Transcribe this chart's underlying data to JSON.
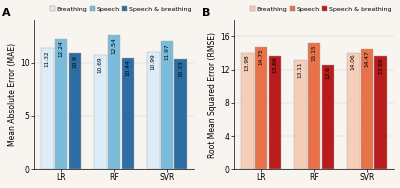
{
  "panel_A": {
    "title": "A",
    "ylabel": "Mean Absolute Error (MAE)",
    "categories": [
      "LR",
      "RF",
      "SVR"
    ],
    "series": {
      "Breathing": [
        11.32,
        10.69,
        10.99
      ],
      "Speech": [
        12.24,
        12.54,
        11.97
      ],
      "Speech & breathing": [
        10.9,
        10.44,
        10.33
      ]
    },
    "colors": [
      "#ddedf7",
      "#7bbcdc",
      "#2e6da4"
    ],
    "ylim": [
      0,
      14
    ],
    "yticks": [
      0,
      5,
      10
    ]
  },
  "panel_B": {
    "title": "B",
    "ylabel": "Root Mean Squared Error (RMSE)",
    "categories": [
      "LR",
      "RF",
      "SVR"
    ],
    "series": {
      "Breathing": [
        13.98,
        13.11,
        14.06
      ],
      "Speech": [
        14.75,
        15.15,
        14.47
      ],
      "Speech & breathing": [
        13.69,
        12.6,
        13.68
      ]
    },
    "colors": [
      "#f5cdb8",
      "#e8724a",
      "#b81c1c"
    ],
    "ylim": [
      0,
      18
    ],
    "yticks": [
      0,
      4,
      8,
      12,
      16
    ]
  },
  "bar_width": 0.26,
  "legend_labels": [
    "Breathing",
    "Speech",
    "Speech & breathing"
  ],
  "background_color": "#f8f4ef",
  "label_fontsize": 5.5,
  "tick_fontsize": 5.5,
  "title_fontsize": 8,
  "legend_fontsize": 4.5,
  "bar_value_fontsize": 4.2
}
